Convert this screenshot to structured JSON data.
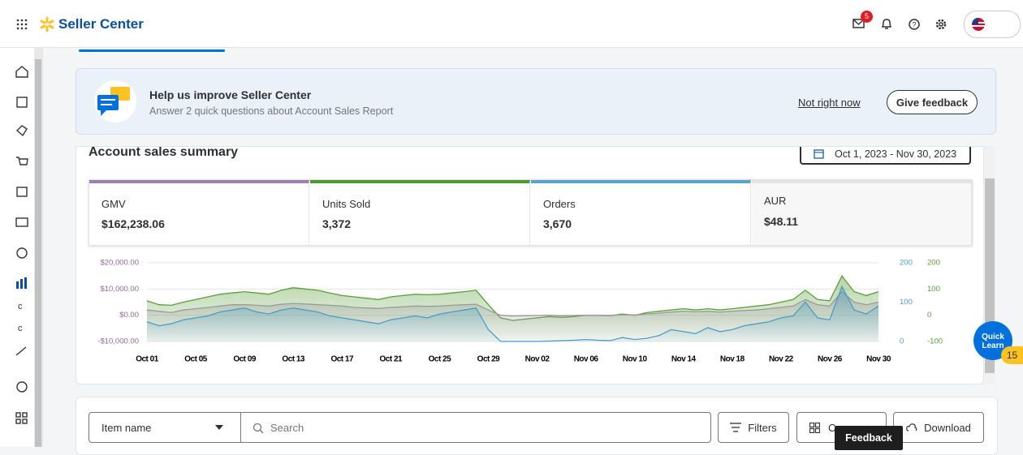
{
  "header": {
    "brand": "Seller Center",
    "mail_badge": "5"
  },
  "sidebar": {
    "labels": [
      "c",
      "c"
    ]
  },
  "banner": {
    "title": "Help us improve Seller Center",
    "subtitle": "Answer 2 quick questions about Account Sales Report",
    "link": "Not right now",
    "button": "Give feedback"
  },
  "summary": {
    "title": "Account sales summary",
    "date_range": "Oct 1, 2023 - Nov 30, 2023",
    "cards": [
      {
        "label": "GMV",
        "value": "$162,238.06",
        "color": "#9b7fb0"
      },
      {
        "label": "Units Sold",
        "value": "3,372",
        "color": "#4f9a2f"
      },
      {
        "label": "Orders",
        "value": "3,670",
        "color": "#5ba3c9"
      },
      {
        "label": "AUR",
        "value": "$48.11",
        "color": null
      }
    ]
  },
  "chart_data": {
    "type": "line",
    "categories": [
      "Oct 01",
      null,
      null,
      null,
      "Oct 05",
      null,
      null,
      null,
      "Oct 09",
      null,
      null,
      null,
      "Oct 13",
      null,
      null,
      null,
      "Oct 17",
      null,
      null,
      null,
      "Oct 21",
      null,
      null,
      null,
      "Oct 25",
      null,
      null,
      null,
      "Oct 29",
      null,
      null,
      null,
      "Nov 02",
      null,
      null,
      null,
      "Nov 06",
      null,
      null,
      null,
      "Nov 10",
      null,
      null,
      null,
      "Nov 14",
      null,
      null,
      null,
      "Nov 18",
      null,
      null,
      null,
      "Nov 22",
      null,
      null,
      null,
      "Nov 26",
      null,
      null,
      null,
      "Nov 30"
    ],
    "series": [
      {
        "name": "Units Sold",
        "color": "#5a9e3a",
        "axis": "y2",
        "values": [
          55,
          40,
          38,
          50,
          60,
          70,
          80,
          85,
          90,
          85,
          80,
          95,
          105,
          100,
          95,
          85,
          75,
          70,
          65,
          60,
          70,
          75,
          80,
          78,
          80,
          85,
          90,
          95,
          40,
          -10,
          -20,
          -15,
          -10,
          -5,
          -8,
          -5,
          0,
          0,
          -2,
          5,
          0,
          10,
          15,
          20,
          25,
          20,
          25,
          20,
          25,
          30,
          35,
          40,
          50,
          60,
          95,
          60,
          55,
          150,
          90,
          75,
          90
        ]
      },
      {
        "name": "GMV",
        "color": "#9a9a9a",
        "values": [
          2000,
          1500,
          1000,
          2000,
          2500,
          3000,
          3500,
          4000,
          4000,
          3800,
          3500,
          4200,
          4500,
          4300,
          4000,
          3800,
          3500,
          3000,
          2800,
          2600,
          3000,
          3200,
          3500,
          3400,
          3500,
          3800,
          4000,
          4200,
          2000,
          0,
          -300,
          -200,
          -100,
          0,
          -200,
          -100,
          0,
          0,
          -100,
          200,
          100,
          500,
          800,
          1200,
          1500,
          1300,
          1500,
          1200,
          1500,
          1800,
          2000,
          2500,
          3000,
          3500,
          6000,
          4000,
          3500,
          9000,
          5000,
          4000,
          5000
        ]
      },
      {
        "name": "Orders",
        "color": "#4a9cc9",
        "axis": "y3",
        "values": [
          50,
          40,
          45,
          55,
          60,
          65,
          75,
          80,
          85,
          75,
          70,
          80,
          85,
          80,
          75,
          65,
          60,
          55,
          50,
          45,
          55,
          60,
          65,
          60,
          70,
          75,
          80,
          85,
          30,
          0,
          0,
          0,
          0,
          1,
          2,
          3,
          5,
          3,
          2,
          10,
          5,
          8,
          15,
          30,
          25,
          20,
          35,
          25,
          30,
          40,
          45,
          50,
          60,
          65,
          100,
          60,
          55,
          140,
          80,
          70,
          90
        ]
      }
    ],
    "ylim": [
      -10000,
      20000
    ],
    "yticks": [
      {
        "value": -10000,
        "label": "-$10,000.00"
      },
      {
        "value": 0,
        "label": "$0.00"
      },
      {
        "value": 10000,
        "label": "$10,000.00"
      },
      {
        "value": 20000,
        "label": "$20,000.00"
      }
    ],
    "y2lim": [
      -100,
      200
    ],
    "y2ticks": [
      -100,
      0,
      100,
      200
    ],
    "y3lim": [
      0,
      200
    ],
    "y3ticks": [
      0,
      100,
      200
    ],
    "grid": true
  },
  "toolbar": {
    "select": "Item name",
    "search": "Search",
    "filters": "Filters",
    "columns": "Co",
    "download": "Download",
    "tooltip": "Feedback"
  },
  "quick_learn": {
    "label": "Quick Learn",
    "badge": "15"
  }
}
